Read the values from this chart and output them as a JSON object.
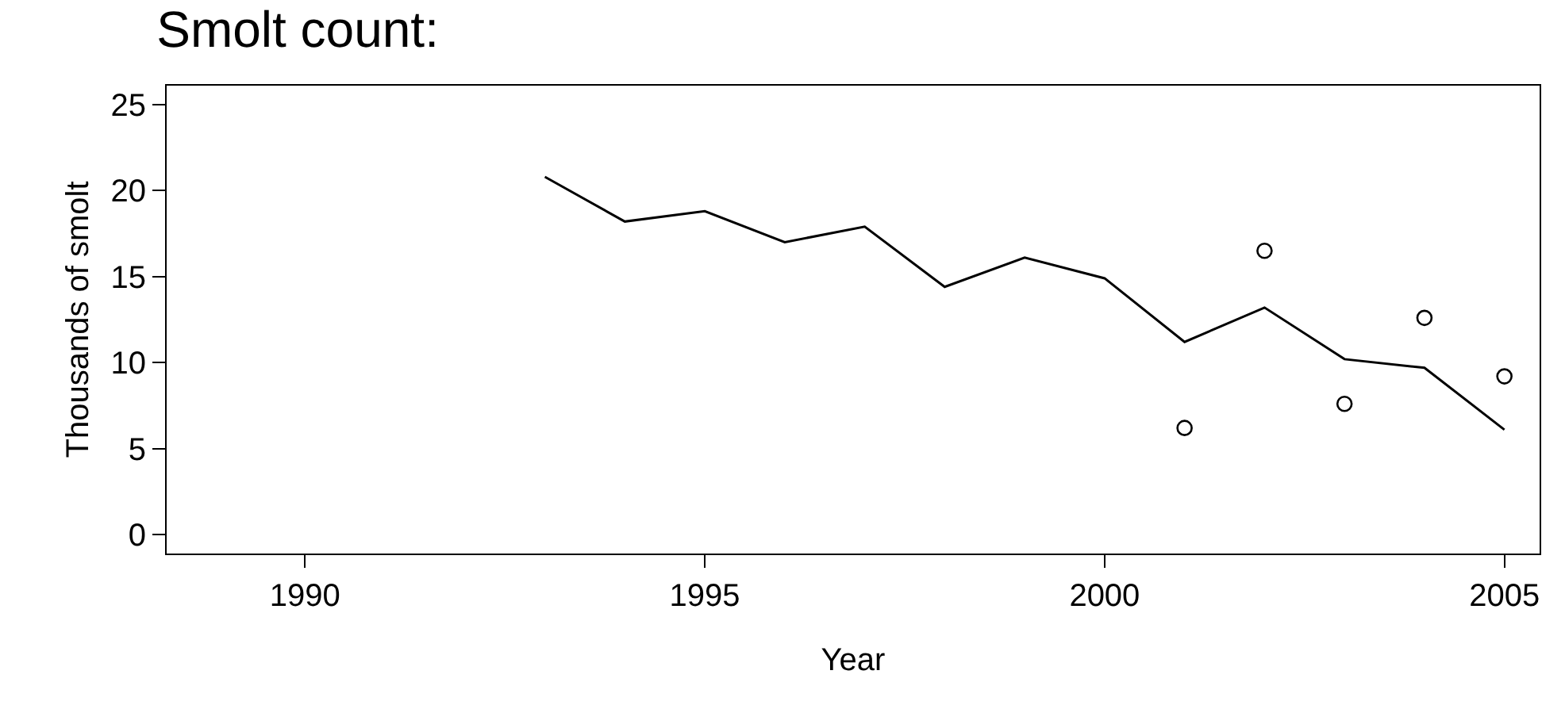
{
  "chart_data": {
    "type": "line",
    "title": "Smolt count:",
    "xlabel": "Year",
    "ylabel": "Thousands of smolt",
    "xlim": [
      1988.27,
      2005.44
    ],
    "xticks": [
      1990,
      1995,
      2000,
      2005
    ],
    "ylim": [
      -1.1,
      26.1
    ],
    "yticks": [
      0,
      5,
      10,
      15,
      20,
      25
    ],
    "series": [
      {
        "color": "#000000",
        "marker": "none",
        "line_style": "solid",
        "x": [
          1993,
          1994,
          1995,
          1996,
          1997,
          1998,
          1999,
          2000,
          2001,
          2002,
          2003,
          2004,
          2005
        ],
        "values": [
          20.8,
          18.2,
          18.8,
          17.0,
          17.9,
          14.4,
          16.1,
          14.9,
          11.2,
          13.2,
          10.2,
          9.7,
          6.1
        ]
      },
      {
        "type": "scatter",
        "color": "#000000",
        "marker": "circle",
        "x": [
          2001,
          2002,
          2003,
          2004,
          2005
        ],
        "values": [
          6.2,
          16.5,
          7.6,
          12.6,
          9.2
        ]
      }
    ]
  }
}
